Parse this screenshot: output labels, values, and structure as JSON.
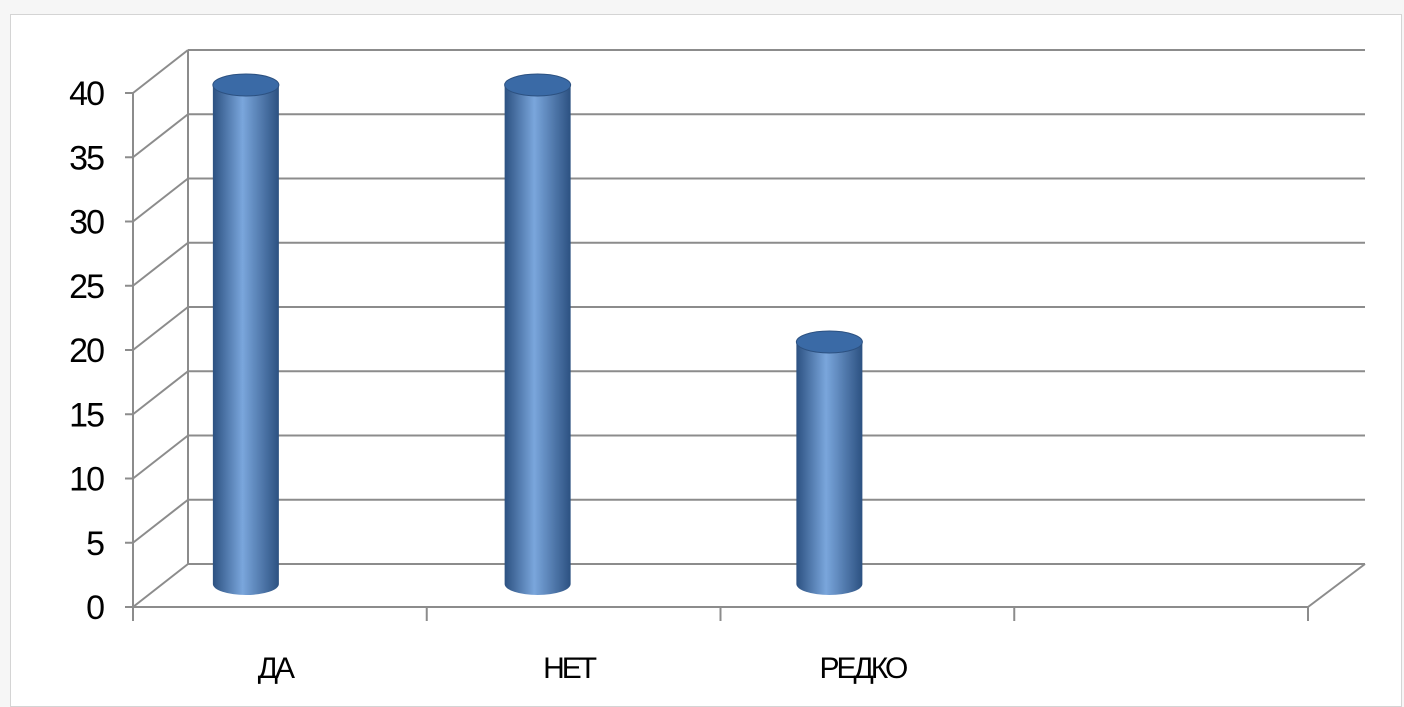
{
  "chart_data": {
    "type": "bar",
    "bar_shape": "cylinder-3d",
    "categories": [
      "ДА",
      "НЕТ",
      "РЕДКО",
      ""
    ],
    "values": [
      40,
      40,
      20,
      null
    ],
    "ylim": [
      0,
      40
    ],
    "ytick_step": 5,
    "yticks": [
      "0",
      "5",
      "10",
      "15",
      "20",
      "25",
      "30",
      "35",
      "40"
    ],
    "grid": true,
    "legend": "none",
    "colors": {
      "bar_main": "#4f81bd",
      "bar_light": "#7aa6dc",
      "bar_dark": "#2c5181",
      "bar_top": "#3a6aa6",
      "grid": "#8c8c8c"
    }
  }
}
